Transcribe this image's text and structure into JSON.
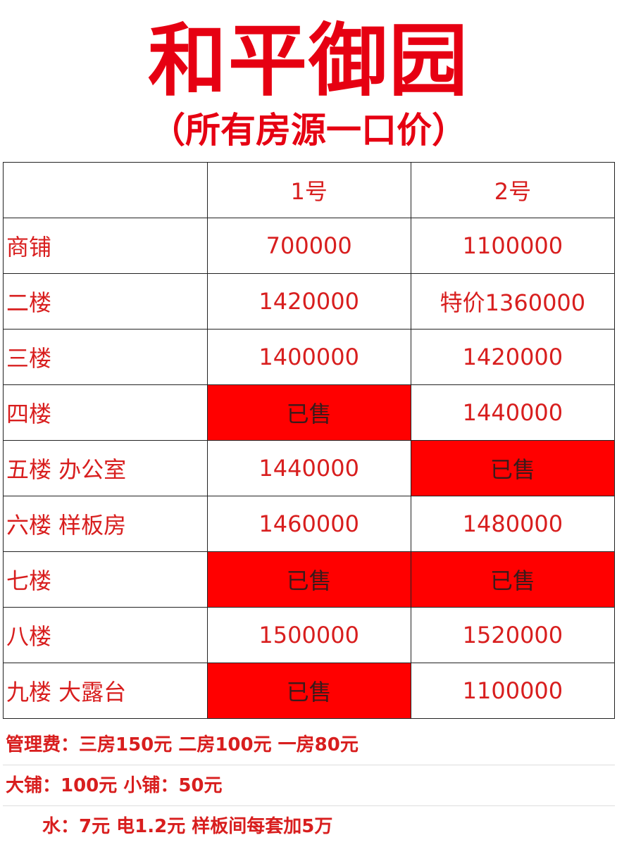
{
  "title": "和平御园",
  "subtitle": "（所有房源一口价）",
  "table": {
    "columns": [
      "",
      "1号",
      "2号"
    ],
    "rows": [
      {
        "label": "商铺",
        "c1": "700000",
        "c2": "1100000"
      },
      {
        "label": "二楼",
        "c1": "1420000",
        "c2": "特价1360000"
      },
      {
        "label": "三楼",
        "c1": "1400000",
        "c2": "1420000"
      },
      {
        "label": "四楼",
        "c1": "已售",
        "c2": "1440000"
      },
      {
        "label": "五楼  办公室",
        "c1": "1440000",
        "c2": "已售"
      },
      {
        "label": "六楼  样板房",
        "c1": "1460000",
        "c2": "1480000"
      },
      {
        "label": "七楼",
        "c1": "已售",
        "c2": "已售"
      },
      {
        "label": "八楼",
        "c1": "1500000",
        "c2": "1520000"
      },
      {
        "label": "九楼  大露台",
        "c1": "已售",
        "c2": "1100000"
      }
    ]
  },
  "notes": [
    "管理费：三房150元  二房100元 一房80元",
    "大铺：100元 小铺：50元",
    "水：7元 电1.2元 样板间每套加5万"
  ],
  "colors": {
    "accent": "#e60012",
    "sold_bg": "#ff0000"
  }
}
